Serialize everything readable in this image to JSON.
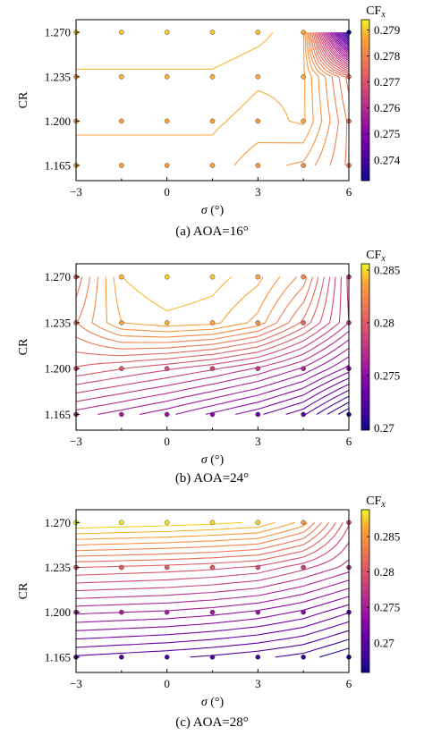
{
  "chart_data": [
    {
      "type": "contour",
      "caption": "(a) AOA=16°",
      "xlabel": "σ (°)",
      "ylabel": "CR",
      "x": [
        -3,
        -1.5,
        0,
        1.5,
        3,
        4.5,
        6
      ],
      "y": [
        1.165,
        1.2,
        1.235,
        1.27
      ],
      "xticks": [
        "-3",
        "0",
        "3",
        "6"
      ],
      "yticks": [
        "1.165",
        "1.200",
        "1.235",
        "1.270"
      ],
      "xlim": [
        -3,
        6
      ],
      "ylim": [
        1.153,
        1.28
      ],
      "colorbar": {
        "label_main": "CF",
        "label_sub": "x",
        "range": [
          0.2732,
          0.2794
        ],
        "ticks": [
          "0.274",
          "0.275",
          "0.276",
          "0.277",
          "0.278",
          "0.279"
        ]
      },
      "z": [
        [
          0.2786,
          0.2786,
          0.2786,
          0.2786,
          0.2784,
          0.2783,
          0.2778
        ],
        [
          0.2787,
          0.2787,
          0.2787,
          0.2787,
          0.2786,
          0.2787,
          0.2778
        ],
        [
          0.2788,
          0.2788,
          0.2788,
          0.2788,
          0.2787,
          0.2787,
          0.2776
        ],
        [
          0.279,
          0.279,
          0.279,
          0.279,
          0.2789,
          0.2787,
          0.2732
        ]
      ],
      "levels": 34
    },
    {
      "type": "contour",
      "caption": "(b) AOA=24°",
      "xlabel": "σ (°)",
      "ylabel": "CR",
      "x": [
        -3,
        -1.5,
        0,
        1.5,
        3,
        4.5,
        6
      ],
      "y": [
        1.165,
        1.2,
        1.235,
        1.27
      ],
      "xticks": [
        "-3",
        "0",
        "3",
        "6"
      ],
      "yticks": [
        "1.165",
        "1.200",
        "1.235",
        "1.270"
      ],
      "xlim": [
        -3,
        6
      ],
      "ylim": [
        1.153,
        1.28
      ],
      "colorbar": {
        "label_main": "CF",
        "label_sub": "x",
        "range": [
          0.2698,
          0.2856
        ],
        "ticks": [
          "0.27",
          "0.275",
          "0.28",
          "0.285"
        ]
      },
      "z": [
        [
          0.2768,
          0.2762,
          0.2755,
          0.2746,
          0.2737,
          0.2725,
          0.27
        ],
        [
          0.28,
          0.2795,
          0.279,
          0.2784,
          0.2776,
          0.2764,
          0.2745
        ],
        [
          0.2818,
          0.2836,
          0.284,
          0.2838,
          0.2828,
          0.2805,
          0.2777
        ],
        [
          0.2808,
          0.2842,
          0.2848,
          0.2845,
          0.2838,
          0.2822,
          0.2775
        ]
      ],
      "levels": 24
    },
    {
      "type": "contour",
      "caption": "(c) AOA=28°",
      "xlabel": "σ (°)",
      "ylabel": "CR",
      "x": [
        -3,
        -1.5,
        0,
        1.5,
        3,
        4.5,
        6
      ],
      "y": [
        1.165,
        1.2,
        1.235,
        1.27
      ],
      "xticks": [
        "-3",
        "0",
        "3",
        "6"
      ],
      "yticks": [
        "1.165",
        "1.200",
        "1.235",
        "1.270"
      ],
      "xlim": [
        -3,
        6
      ],
      "ylim": [
        1.153,
        1.28
      ],
      "colorbar": {
        "label_main": "CF",
        "label_sub": "x",
        "range": [
          0.2658,
          0.2888
        ],
        "ticks": [
          "0.27",
          "0.275",
          "0.28",
          "0.285"
        ]
      },
      "z": [
        [
          0.27,
          0.2697,
          0.2694,
          0.269,
          0.2685,
          0.2678,
          0.2663
        ],
        [
          0.2752,
          0.275,
          0.2748,
          0.2744,
          0.2738,
          0.2728,
          0.2712
        ],
        [
          0.2808,
          0.2806,
          0.2804,
          0.2801,
          0.2796,
          0.2782,
          0.2765
        ],
        [
          0.2885,
          0.2883,
          0.2881,
          0.2878,
          0.2874,
          0.2852,
          0.279
        ]
      ],
      "levels": 22
    }
  ]
}
